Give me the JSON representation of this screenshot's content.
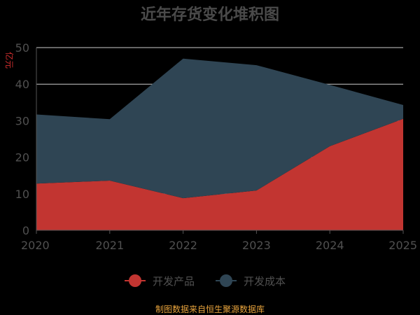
{
  "chart_data": {
    "type": "area",
    "stacked": true,
    "title": "近年存货变化堆积图",
    "ylabel": "亿元",
    "categories": [
      "2020",
      "2021",
      "2022",
      "2023",
      "2024",
      "2025"
    ],
    "ylim": [
      0,
      50
    ],
    "yticks": [
      0,
      10,
      20,
      30,
      40,
      50
    ],
    "grid": true,
    "legend_position": "bottom",
    "series": [
      {
        "name": "开发产品",
        "color": "#c23531",
        "values": [
          12.8,
          13.6,
          8.8,
          10.9,
          23.0,
          30.5
        ]
      },
      {
        "name": "开发成本",
        "color": "#2f4554",
        "values": [
          18.9,
          16.8,
          38.2,
          34.3,
          16.8,
          3.8
        ]
      }
    ],
    "source": "制图数据来自恒生聚源数据库"
  }
}
